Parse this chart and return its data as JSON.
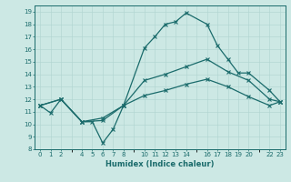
{
  "xlabel": "Humidex (Indice chaleur)",
  "bg_color": "#cce8e4",
  "line_color": "#1a6b6b",
  "grid_color": "#afd4d0",
  "xlim": [
    -0.5,
    23.5
  ],
  "ylim": [
    8,
    19.5
  ],
  "yticks": [
    8,
    9,
    10,
    11,
    12,
    13,
    14,
    15,
    16,
    17,
    18,
    19
  ],
  "xtick_positions": [
    0,
    1,
    2,
    4,
    5,
    6,
    7,
    8,
    10,
    11,
    12,
    13,
    14,
    16,
    17,
    18,
    19,
    20,
    22,
    23
  ],
  "xtick_labels": [
    "0",
    "1",
    "2",
    "4",
    "5",
    "6",
    "7",
    "8",
    "10",
    "11",
    "12",
    "13",
    "14",
    "16",
    "17",
    "18",
    "19",
    "20",
    "22",
    "23"
  ],
  "line1_x": [
    0,
    1,
    2,
    4,
    5,
    6,
    7,
    8,
    10,
    11,
    12,
    13,
    14,
    16,
    17,
    18,
    19,
    20,
    22,
    23
  ],
  "line1_y": [
    11.5,
    10.9,
    12.0,
    10.2,
    10.2,
    8.5,
    9.6,
    11.5,
    16.1,
    17.0,
    18.0,
    18.2,
    18.9,
    18.0,
    16.3,
    15.2,
    14.1,
    14.1,
    12.7,
    11.8
  ],
  "line2_x": [
    0,
    2,
    4,
    6,
    8,
    10,
    12,
    14,
    16,
    18,
    20,
    22,
    23
  ],
  "line2_y": [
    11.5,
    12.0,
    10.2,
    10.5,
    11.5,
    13.5,
    14.0,
    14.6,
    15.2,
    14.2,
    13.5,
    12.0,
    11.8
  ],
  "line3_x": [
    0,
    2,
    4,
    6,
    8,
    10,
    12,
    14,
    16,
    18,
    20,
    22,
    23
  ],
  "line3_y": [
    11.5,
    12.0,
    10.2,
    10.3,
    11.5,
    12.3,
    12.7,
    13.2,
    13.6,
    13.0,
    12.2,
    11.5,
    11.8
  ]
}
